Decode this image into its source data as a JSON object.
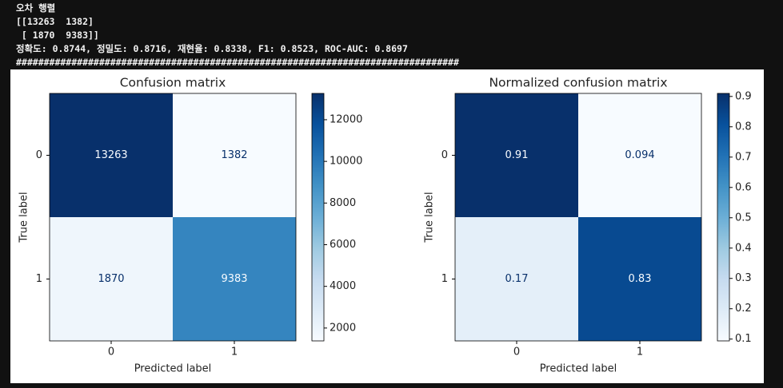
{
  "console": [
    "오차 행렬",
    "[[13263  1382]",
    " [ 1870  9383]]",
    "정확도: 0.8744, 정밀도: 0.8716, 재현율: 0.8338, F1: 0.8523, ROC-AUC: 0.8697",
    "################################################################################"
  ],
  "chart_data": [
    {
      "type": "heatmap",
      "title": "Confusion matrix",
      "xlabel": "Predicted label",
      "ylabel": "True label",
      "x_categories": [
        "0",
        "1"
      ],
      "y_categories": [
        "0",
        "1"
      ],
      "values": [
        [
          13263,
          1382
        ],
        [
          1870,
          9383
        ]
      ],
      "clim": [
        1382,
        13263
      ],
      "colorbar_ticks": [
        2000,
        4000,
        6000,
        8000,
        10000,
        12000
      ],
      "colormap": [
        "#f7fbff",
        "#deebf7",
        "#c6dbef",
        "#9ecae1",
        "#6baed6",
        "#4292c6",
        "#2171b5",
        "#08519c",
        "#08306b"
      ]
    },
    {
      "type": "heatmap",
      "title": "Normalized confusion matrix",
      "xlabel": "Predicted label",
      "ylabel": "True label",
      "x_categories": [
        "0",
        "1"
      ],
      "y_categories": [
        "0",
        "1"
      ],
      "values": [
        [
          0.91,
          0.094
        ],
        [
          0.17,
          0.83
        ]
      ],
      "clim": [
        0.094,
        0.91
      ],
      "colorbar_ticks": [
        0.1,
        0.2,
        0.3,
        0.4,
        0.5,
        0.6,
        0.7,
        0.8,
        0.9
      ],
      "colormap": [
        "#f7fbff",
        "#deebf7",
        "#c6dbef",
        "#9ecae1",
        "#6baed6",
        "#4292c6",
        "#2171b5",
        "#08519c",
        "#08306b"
      ]
    }
  ]
}
